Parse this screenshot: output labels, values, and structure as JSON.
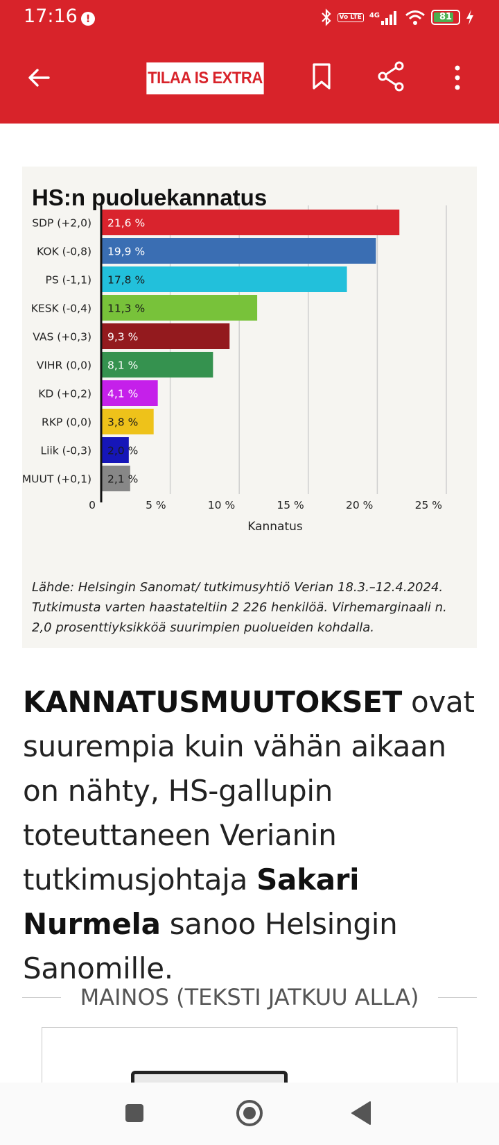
{
  "status_bar": {
    "time": "17:16",
    "alert_icon": "exclamation-icon",
    "volte_label": "Vo LTE",
    "network_label": "4G",
    "battery_level": "81",
    "battery_fraction": 0.81
  },
  "app_bar": {
    "back_icon": "arrow-left-icon",
    "subscribe_label": "TILAA IS EXTRA",
    "bookmark_icon": "bookmark-icon",
    "share_icon": "share-icon",
    "more_icon": "more-vertical-icon",
    "brand_color": "#d8232a"
  },
  "chart_data": {
    "type": "bar",
    "orientation": "horizontal",
    "title": "HS:n puoluekannatus",
    "xlabel": "Kannatus",
    "ylabel": "",
    "xlim": [
      0,
      25
    ],
    "x_ticks": [
      "0",
      "5 %",
      "10 %",
      "15 %",
      "20 %",
      "25 %"
    ],
    "x_tick_values": [
      0,
      5,
      10,
      15,
      20,
      25
    ],
    "grid": true,
    "categories": [
      "SDP (+2,0)",
      "KOK (-0,8)",
      "PS (-1,1)",
      "KESK (-0,4)",
      "VAS (+0,3)",
      "VIHR (0,0)",
      "KD (+0,2)",
      "RKP (0,0)",
      "Liik (-0,3)",
      "MUUT (+0,1)"
    ],
    "values": [
      21.6,
      19.9,
      17.8,
      11.3,
      9.3,
      8.1,
      4.1,
      3.8,
      2.0,
      2.1
    ],
    "data_labels": [
      "21,6 %",
      "19,9 %",
      "17,8 %",
      "11,3 %",
      "9,3 %",
      "8,1 %",
      "4,1 %",
      "3,8 %",
      "2,0 %",
      "2,1 %"
    ],
    "colors": [
      "#d9232d",
      "#3a6eb3",
      "#22c0db",
      "#78c23a",
      "#931a1e",
      "#35924f",
      "#c520ea",
      "#eec21a",
      "#1616b8",
      "#878787"
    ],
    "label_colors": [
      "#ffffff",
      "#ffffff",
      "#1a1a1a",
      "#1a1a1a",
      "#ffffff",
      "#ffffff",
      "#ffffff",
      "#1a1a1a",
      "#1a1a1a",
      "#1a1a1a"
    ],
    "source": "Lähde: Helsingin Sanomat/ tutkimusyhtiö Verian 18.3.–12.4.2024. Tutkimusta varten haastateltiin 2 226 henkilöä.  Virhemarginaali n. 2,0 prosenttiyksikköä suurimpien puolueiden kohdalla."
  },
  "article": {
    "lead_bold": "KANNATUSMUUTOKSET",
    "part1": " ovat suurempia kuin vähän aikaan on nähty, HS-gallupin toteuttaneen Verianin tutkimusjohtaja ",
    "name_bold": "Sakari Nurmela",
    "part2": " sanoo Helsingin Sanomille."
  },
  "ad": {
    "label": "MAINOS (TEKSTI JATKUU ALLA)"
  },
  "nav_bar": {
    "recents_icon": "square-icon",
    "home_icon": "circle-home-icon",
    "back_icon": "triangle-back-icon"
  }
}
